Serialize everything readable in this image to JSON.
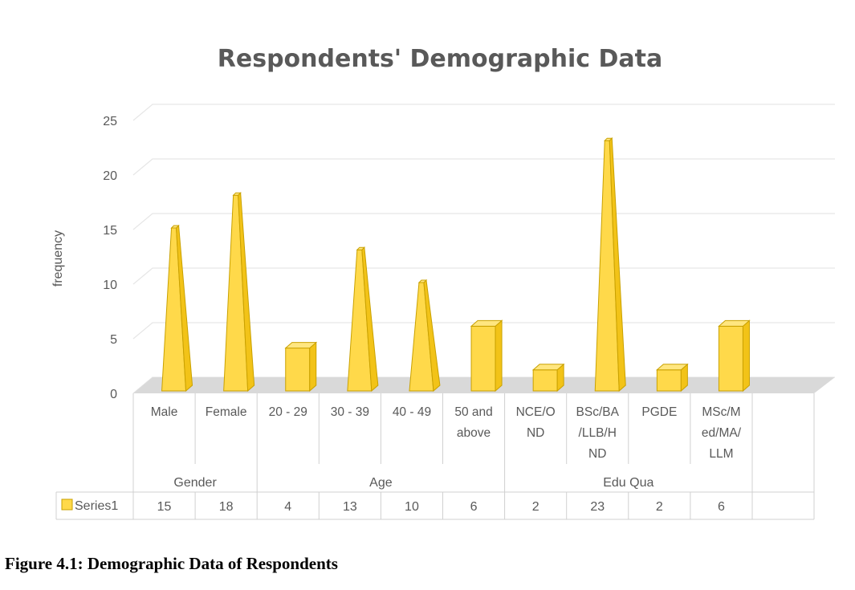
{
  "chart_data": {
    "type": "bar",
    "title": "Respondents' Demographic Data",
    "ylabel": "frequency",
    "ylim": [
      0,
      25
    ],
    "yticks": [
      0,
      5,
      10,
      15,
      20,
      25
    ],
    "grid": true,
    "categories": [
      [
        "Male"
      ],
      [
        "Female"
      ],
      [
        "20 - 29"
      ],
      [
        "30 - 39"
      ],
      [
        "40 - 49"
      ],
      [
        "50 and",
        "above"
      ],
      [
        "NCE/O",
        "ND"
      ],
      [
        "BSc/BA",
        "/LLB/H",
        "ND"
      ],
      [
        "PGDE"
      ],
      [
        "MSc/M",
        "ed/MA/",
        "LLM"
      ]
    ],
    "groups": [
      {
        "label": "Gender",
        "count": 2
      },
      {
        "label": "Age",
        "count": 4
      },
      {
        "label": "Edu Qua",
        "count": 4
      }
    ],
    "series": [
      {
        "name": "Series1",
        "values": [
          15,
          18,
          4,
          13,
          10,
          6,
          2,
          23,
          2,
          6
        ],
        "color": "#FFD94A"
      }
    ],
    "shapes": [
      "pyramid",
      "pyramid",
      "column",
      "pyramid",
      "pyramid",
      "column",
      "column",
      "pyramid",
      "column",
      "column"
    ],
    "data_table": true
  },
  "caption": "Figure 4.1: Demographic Data of Respondents"
}
